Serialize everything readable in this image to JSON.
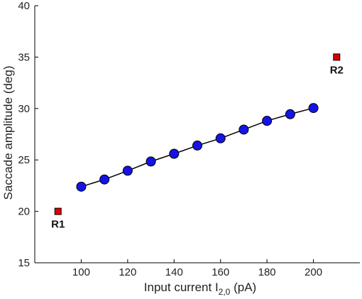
{
  "chart_data": {
    "type": "scatter",
    "xlabel": {
      "base": "Input current I",
      "subscript": "2,0",
      "suffix": " (pA)"
    },
    "ylabel": "Saccade amplitude (deg)",
    "xlim": [
      80,
      220
    ],
    "ylim": [
      15,
      40
    ],
    "x_ticks": [
      100,
      120,
      140,
      160,
      180,
      200
    ],
    "y_ticks": [
      15,
      20,
      25,
      30,
      35,
      40
    ],
    "grid": false,
    "series": [
      {
        "marker": "circle",
        "line": true,
        "color": "#1414e6",
        "edge_color": "#000000",
        "x": [
          100,
          110,
          120,
          130,
          140,
          150,
          160,
          170,
          180,
          190,
          200
        ],
        "y": [
          22.4,
          23.1,
          23.95,
          24.85,
          25.6,
          26.4,
          27.1,
          27.95,
          28.8,
          29.45,
          30.05
        ]
      }
    ],
    "markers": [
      {
        "label": "R1",
        "x": 90,
        "y": 20,
        "marker": "square",
        "color": "#dd0000"
      },
      {
        "label": "R2",
        "x": 210,
        "y": 35,
        "marker": "square",
        "color": "#dd0000"
      }
    ]
  }
}
